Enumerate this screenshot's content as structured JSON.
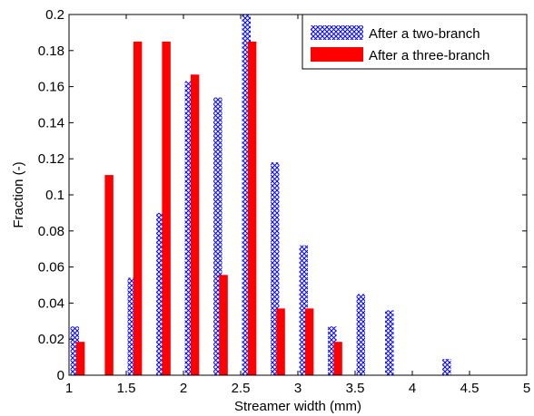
{
  "chart_data": {
    "type": "bar",
    "xlabel": "Streamer width (mm)",
    "ylabel": "Fraction (-)",
    "xlim": [
      1,
      5
    ],
    "ylim": [
      0,
      0.2
    ],
    "xticks": [
      "1",
      "1.5",
      "2",
      "2.5",
      "3",
      "3.5",
      "4",
      "4.5",
      "5"
    ],
    "yticks": [
      "0",
      "0.02",
      "0.04",
      "0.06",
      "0.08",
      "0.1",
      "0.12",
      "0.14",
      "0.16",
      "0.18",
      "0.2"
    ],
    "grid": false,
    "legend_position": "top-right",
    "series": [
      {
        "name": "After a two-branch",
        "pattern": "crosshatch",
        "color": "#0000ff",
        "x": [
          1.05,
          1.3,
          1.55,
          1.8,
          2.05,
          2.3,
          2.55,
          2.8,
          3.05,
          3.3,
          3.55,
          3.8,
          4.05,
          4.3
        ],
        "values": [
          0.027,
          0.0,
          0.054,
          0.09,
          0.163,
          0.154,
          0.2,
          0.118,
          0.072,
          0.027,
          0.045,
          0.036,
          0.0,
          0.009
        ]
      },
      {
        "name": "After a three-branch",
        "pattern": "solid",
        "color": "#ff0000",
        "x": [
          1.1,
          1.35,
          1.6,
          1.85,
          2.1,
          2.35,
          2.6,
          2.85,
          3.1,
          3.35
        ],
        "values": [
          0.0185,
          0.111,
          0.185,
          0.185,
          0.1667,
          0.0556,
          0.185,
          0.037,
          0.037,
          0.0185
        ]
      }
    ]
  }
}
